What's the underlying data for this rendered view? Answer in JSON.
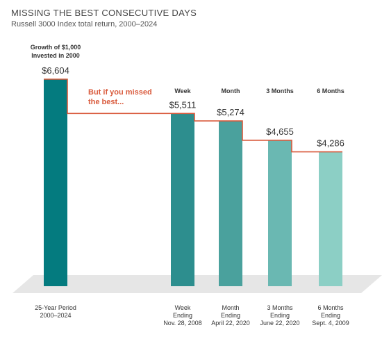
{
  "title": "MISSING THE BEST CONSECUTIVE DAYS",
  "subtitle": "Russell 3000 Index total return, 2000–2024",
  "chart_data": {
    "type": "bar",
    "headers": [
      [
        "Growth of $1,000",
        "Invested in 2000"
      ],
      [
        "Week"
      ],
      [
        "Month"
      ],
      [
        "3 Months"
      ],
      [
        "6 Months"
      ]
    ],
    "categories": [
      [
        "25-Year Period",
        "2000–2024"
      ],
      [
        "Week",
        "Ending",
        "Nov. 28, 2008"
      ],
      [
        "Month",
        "Ending",
        "April 22, 2020"
      ],
      [
        "3 Months",
        "Ending",
        "June 22, 2020"
      ],
      [
        "6 Months",
        "Ending",
        "Sept. 4, 2009"
      ]
    ],
    "values": [
      6604,
      5511,
      5274,
      4655,
      4286
    ],
    "value_labels": [
      "$6,604",
      "$5,511",
      "$5,274",
      "$4,655",
      "$4,286"
    ],
    "annotation": [
      "But if you missed",
      "the best..."
    ],
    "bar_colors": [
      "#047b7f",
      "#2d8e8e",
      "#4aa19d",
      "#6ab8b2",
      "#8ccfc5"
    ],
    "step_line_color": "#d95a3c",
    "floor_color": "#e6e6e6",
    "ylim": [
      0,
      6604
    ],
    "grid": false,
    "legend": "none"
  }
}
